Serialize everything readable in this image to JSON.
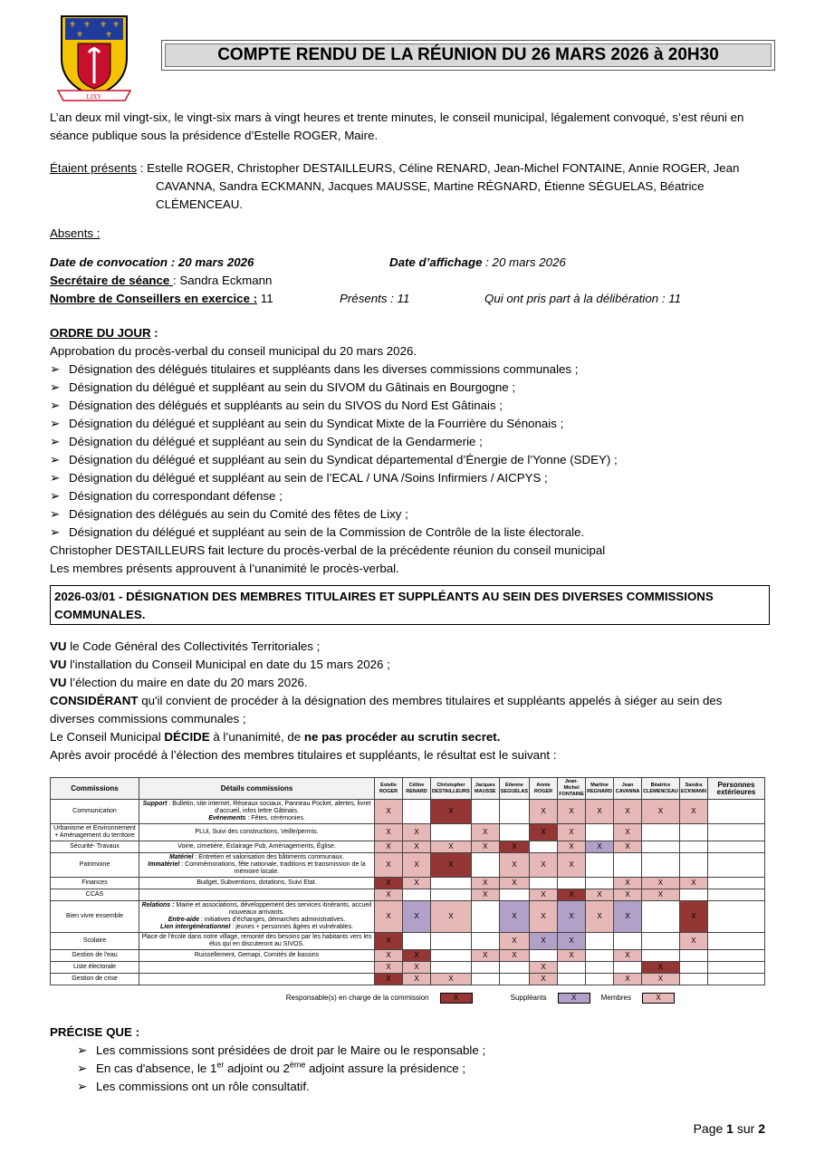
{
  "title": "COMPTE RENDU DE LA RÉUNION DU 26 MARS 2026 à 20H30",
  "logo_text": "LIXY",
  "intro": "L’an deux mil vingt-six, le vingt-six mars à vingt heures et trente minutes, le conseil municipal, légalement convoqué, s’est réuni en séance publique sous la présidence d’Estelle ROGER, Maire.",
  "presents_label": "Étaient présents",
  "presents": " : Estelle ROGER, Christopher DESTAILLEURS, Céline RENARD, Jean-Michel FONTAINE, Annie ROGER, Jean",
  "presents_cont": "CAVANNA, Sandra ECKMANN, Jacques MAUSSE, Martine RÉGNARD, Étienne SÉGUELAS, Béatrice CLÉMENCEAU.",
  "absents_label": "Absents :",
  "convocation": "Date de convocation : 20 mars 2026",
  "affichage_label": "Date d’affichage",
  "affichage": " : 20 mars 2026",
  "secretaire_label": "Secrétaire de séance ",
  "secretaire": ": Sandra Eckmann",
  "nombre_label": "Nombre de Conseillers en exercice :",
  "nombre": " 11",
  "presents_count": "Présents :  11",
  "deliberation": "Qui ont pris part à la délibération : 11",
  "ordre_label": "ORDRE DU JOUR",
  "ordre_colon": " :",
  "approbation": "Approbation du procès-verbal du conseil municipal du 20 mars 2026.",
  "ordre_items": [
    "Désignation des délégués titulaires et suppléants dans les diverses commissions communales ;",
    "Désignation du délégué et suppléant au sein du SIVOM du Gâtinais en Bourgogne ;",
    "Désignation des délégués et suppléants au sein du SIVOS du Nord Est Gâtinais ;",
    "Désignation du délégué et suppléant au sein du Syndicat Mixte de la Fourrière du Sénonais ;",
    "Désignation du délégué et suppléant au sein du Syndicat de la Gendarmerie ;",
    "Désignation du délégué et suppléant au sein du Syndicat départemental d’Énergie de l’Yonne (SDEY) ;",
    "Désignation du délégué et suppléant au sein de l’ECAL / UNA /Soins Infirmiers / AICPYS ;",
    "Désignation du correspondant défense ;",
    "Désignation des délégués au sein du Comité des fêtes de Lixy ;",
    "Désignation du délégué et suppléant au sein de la Commission de Contrôle de la liste électorale."
  ],
  "lecture": "Christopher DESTAILLEURS fait lecture du procès-verbal de la précédente réunion du conseil municipal",
  "approuvent": "Les membres présents approuvent à l’unanimité le procès-verbal.",
  "section_title": "2026-03/01 - DÉSIGNATION DES MEMBRES TITULAIRES ET SUPPLÉANTS AU SEIN DES DIVERSES COMMISSIONS COMMUNALES.",
  "vu": [
    {
      "k": "VU",
      "t": " le Code Général des Collectivités Territoriales ;"
    },
    {
      "k": "VU",
      "t": " l'installation du Conseil Municipal en date du 15 mars 2026 ;"
    },
    {
      "k": "VU",
      "t": " l’élection du maire en date du 20 mars 2026."
    }
  ],
  "considerant_k": "CONSIDÉRANT",
  "considerant": " qu'il convient de procéder à la désignation des membres titulaires et suppléants appelés à siéger au sein des diverses commissions communales ;",
  "decide_a": " Le Conseil Municipal ",
  "decide_k": "DÉCIDE",
  "decide_b": " à l’unanimité, de ",
  "decide_c": "ne pas procéder au scrutin secret.",
  "resultat": "Après avoir procédé à l’élection des membres titulaires et suppléants, le résultat est le suivant :",
  "table": {
    "h_commissions": "Commissions",
    "h_details": "Détails  commissions",
    "members": [
      [
        "Estelle",
        "ROGER"
      ],
      [
        "Céline",
        "RENARD"
      ],
      [
        "Christopher",
        "DESTAILLEURS"
      ],
      [
        "Jacques",
        "MAUSSE"
      ],
      [
        "Etienne",
        "SEGUELAS"
      ],
      [
        "Annie",
        "ROGER"
      ],
      [
        "Jean-Michel",
        "FONTAINE"
      ],
      [
        "Martine",
        "REGNARD"
      ],
      [
        "Jean",
        "CAVANNA"
      ],
      [
        "Béatrice",
        "CLEMENCEAU"
      ],
      [
        "Sandra",
        "ECKMANN"
      ]
    ],
    "h_ext": "Personnes extérieures",
    "rows": [
      {
        "name": "Communication",
        "details": [
          {
            "k": "Support ",
            "t": " : Bulletin, site internet, Réseaux sociaux, Panneau Pocket, alertes, livret d'accueil, infos lettre Gâtinais."
          },
          {
            "k": "Evénements ",
            "t": " : Fêtes, cérémonies."
          }
        ],
        "cells": [
          "m",
          "",
          "r",
          "",
          "",
          "m",
          "m",
          "m",
          "m",
          "m",
          "m",
          ""
        ]
      },
      {
        "name": "Urbanisme et Environnement + Aménagement du territoire",
        "details": [
          {
            "k": "",
            "t": "PLUi, Suivi des constructions, Veille/permis."
          }
        ],
        "cells": [
          "m",
          "m",
          "",
          "m",
          "",
          "r",
          "m",
          "",
          "m",
          "",
          "",
          ""
        ]
      },
      {
        "name": "Sécurité- Travaux",
        "details": [
          {
            "k": "",
            "t": "Voirie, cimetière, Eclairage Pub, Aménagements, Église."
          }
        ],
        "cells": [
          "m",
          "m",
          "m",
          "m",
          "r",
          "",
          "m",
          "s",
          "m",
          "",
          "",
          ""
        ]
      },
      {
        "name": "Patrimoine",
        "details": [
          {
            "k": "Matériel ",
            "t": " : Entretien et valorisation des bâtiments communaux."
          },
          {
            "k": "Immatériel ",
            "t": " : Commémorations, fête nationale, traditions et transmission de la mémoire locale."
          }
        ],
        "cells": [
          "m",
          "m",
          "r",
          "",
          "m",
          "m",
          "m",
          "",
          "",
          "",
          "",
          ""
        ]
      },
      {
        "name": "Finances",
        "details": [
          {
            "k": "",
            "t": "Budget, Subventions, dotations, Suivi Etat."
          }
        ],
        "cells": [
          "r",
          "m",
          "",
          "m",
          "m",
          "",
          "",
          "",
          "m",
          "m",
          "m",
          ""
        ]
      },
      {
        "name": "CCAS",
        "details": [
          {
            "k": "",
            "t": ""
          }
        ],
        "cells": [
          "m",
          "",
          "",
          "m",
          "",
          "m",
          "r",
          "m",
          "m",
          "m",
          "",
          ""
        ]
      },
      {
        "name": "Bien vivre ensemble",
        "details": [
          {
            "k": "Relations : ",
            "t": " Mairie et associations, développement des services itinérants, accueil nouveaux arrivants."
          },
          {
            "k": "Entre-aide ",
            "t": " : initiatives d'échanges, démarches administratives."
          },
          {
            "k": "Lien intergénérationnel ",
            "t": " : jeunes + personnes âgées et vulnérables."
          }
        ],
        "cells": [
          "m",
          "s",
          "m",
          "",
          "s",
          "m",
          "s",
          "m",
          "s",
          "",
          "r",
          ""
        ]
      },
      {
        "name": "Scolaire",
        "details": [
          {
            "k": "",
            "t": "Place de l'école dans notre village, remonté des besoins par les habitants vers les élus qui en discuteront au SIVOS."
          }
        ],
        "cells": [
          "r",
          "",
          "",
          "",
          "m",
          "s",
          "s",
          "",
          "",
          "",
          "m",
          ""
        ]
      },
      {
        "name": "Gestion de l'eau",
        "details": [
          {
            "k": "",
            "t": "Ruissellement, Gemapi, Comités de bassins"
          }
        ],
        "cells": [
          "m",
          "r",
          "",
          "m",
          "m",
          "",
          "m",
          "",
          "m",
          "",
          "",
          ""
        ]
      },
      {
        "name": "Liste électorale",
        "details": [
          {
            "k": "",
            "t": ""
          }
        ],
        "cells": [
          "m",
          "m",
          "",
          "",
          "",
          "m",
          "",
          "",
          "",
          "r",
          "",
          ""
        ]
      },
      {
        "name": "Gestion de crise",
        "details": [
          {
            "k": "",
            "t": ""
          }
        ],
        "cells": [
          "r",
          "m",
          "m",
          "",
          "",
          "m",
          "",
          "",
          "m",
          "m",
          "",
          ""
        ]
      }
    ],
    "mark": "X",
    "legend": {
      "responsable": "Responsable(s) en charge de la commission",
      "suppleants": "Suppléants",
      "membres": "Membres"
    }
  },
  "colors": {
    "responsable": "#943634",
    "suppleant": "#b1a0c7",
    "membre": "#e6b8b7"
  },
  "precise_label": "PRÉCISE QUE :",
  "precise": [
    "Les commissions sont présidées de droit par le Maire ou le responsable ;"
  ],
  "precise2": {
    "a": "En cas d'absence, le 1",
    "s1": "er",
    "b": " adjoint ou 2",
    "s2": "ème",
    "c": " adjoint assure la présidence ;"
  },
  "precise3": "Les commissions ont un rôle consultatif.",
  "footer": {
    "a": "Page ",
    "n": "1",
    "b": " sur ",
    "t": "2"
  }
}
